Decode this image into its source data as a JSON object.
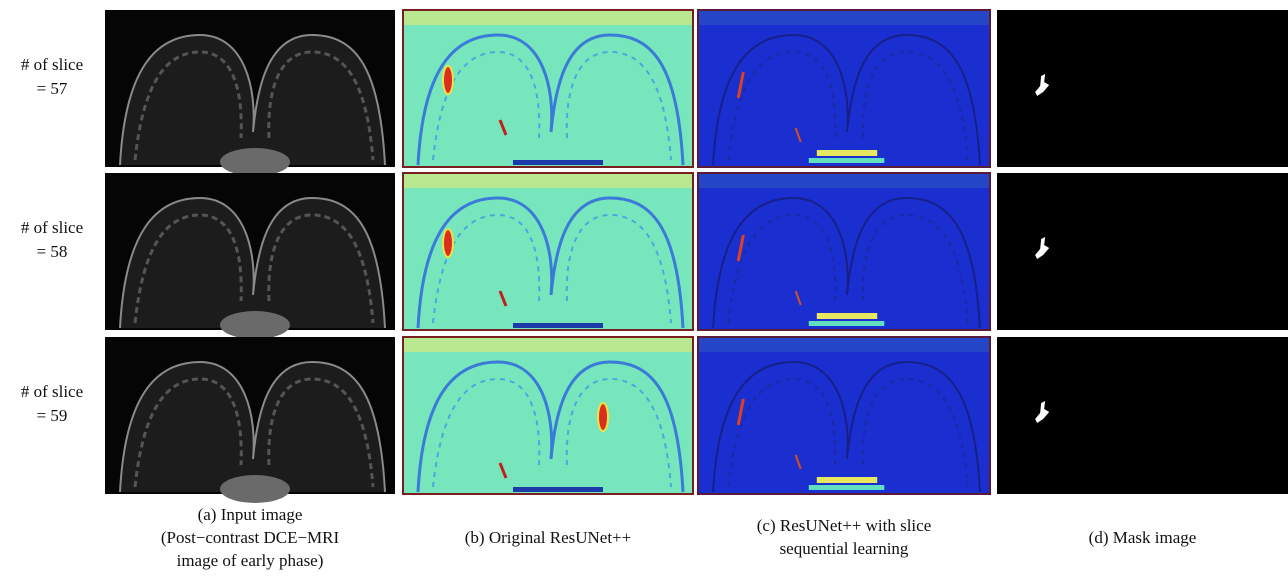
{
  "rows": [
    {
      "label": [
        "# of slice",
        "= 57"
      ]
    },
    {
      "label": [
        "# of slice",
        "= 58"
      ]
    },
    {
      "label": [
        "# of slice",
        "= 59"
      ]
    }
  ],
  "columns": [
    {
      "caption": [
        "(a) Input image",
        "(Post−contrast DCE−MRI",
        "image of early phase)"
      ]
    },
    {
      "caption": [
        "(b) Original ResUNet++"
      ]
    },
    {
      "caption": [
        "(c) ResUNet++ with slice",
        "sequential learning"
      ]
    },
    {
      "caption": [
        "(d) Mask image"
      ]
    }
  ]
}
